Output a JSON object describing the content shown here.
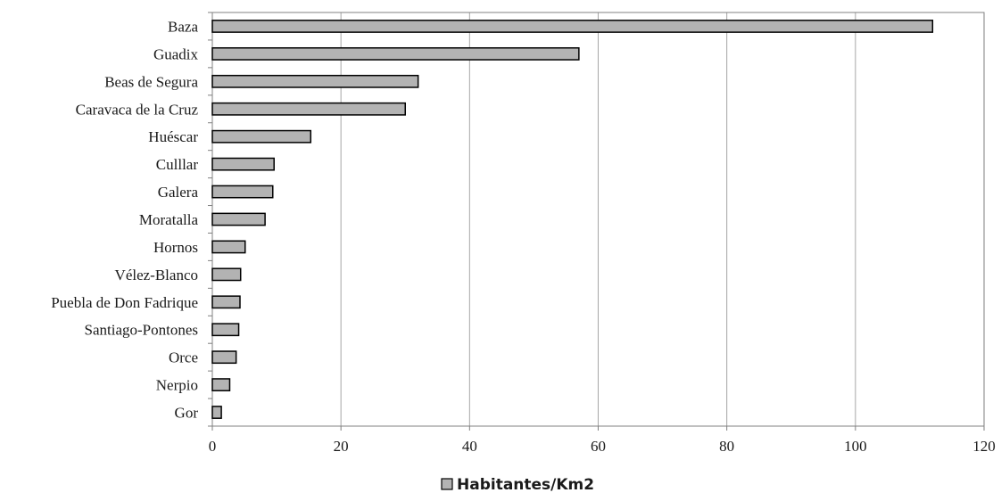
{
  "chart_data": {
    "type": "bar",
    "orientation": "horizontal",
    "categories": [
      "Baza",
      "Guadix",
      "Beas de Segura",
      "Caravaca de la Cruz",
      "Huéscar",
      "Culllar",
      "Galera",
      "Moratalla",
      "Hornos",
      "Vélez-Blanco",
      "Puebla de Don Fadrique",
      "Santiago-Pontones",
      "Orce",
      "Nerpio",
      "Gor"
    ],
    "series": [
      {
        "name": "Habitantes/Km2",
        "values": [
          112,
          57,
          32,
          30,
          15.3,
          9.6,
          9.4,
          8.2,
          5.1,
          4.4,
          4.3,
          4.1,
          3.7,
          2.7,
          1.4
        ]
      }
    ],
    "xlim": [
      0,
      120
    ],
    "xticks": [
      0,
      20,
      40,
      60,
      80,
      100,
      120
    ],
    "grid": "vertical",
    "legend_position": "bottom",
    "colors": {
      "bar_fill": "#b3b3b3",
      "bar_stroke": "#000000",
      "grid": "#a6a6a6",
      "axis": "#808080"
    }
  }
}
